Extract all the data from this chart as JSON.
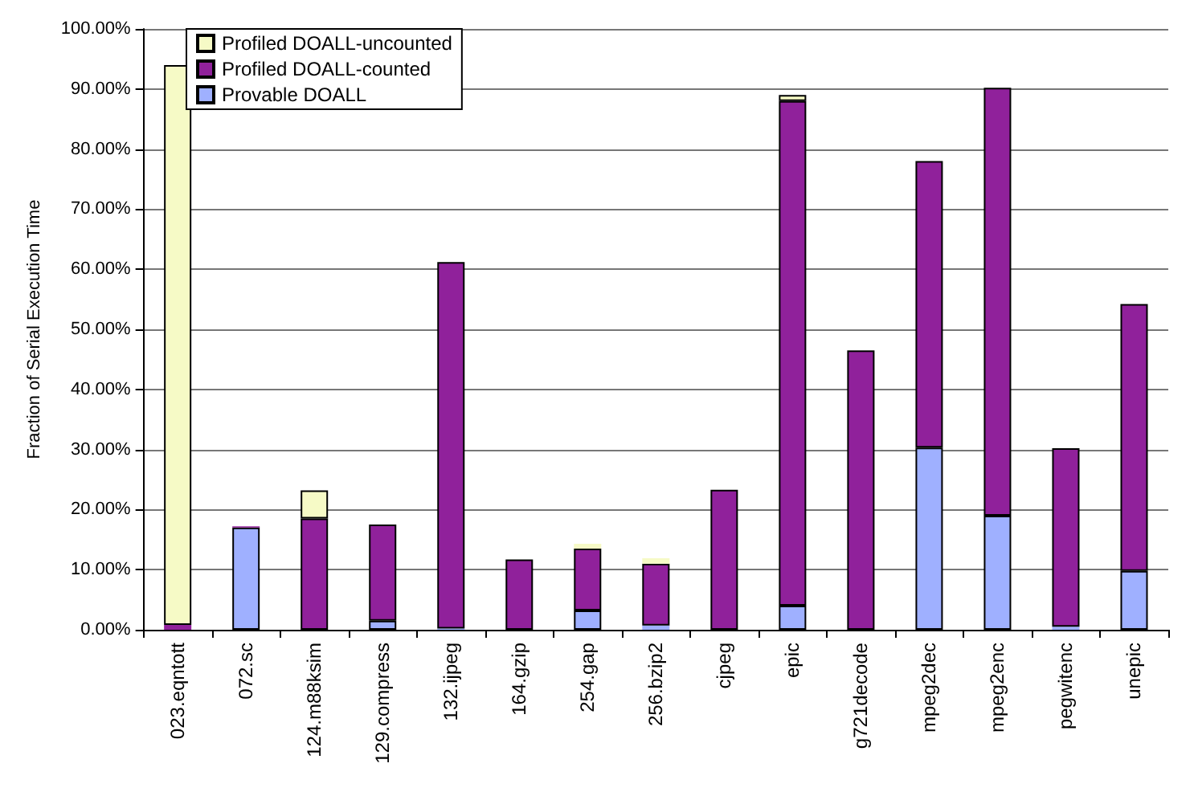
{
  "chart_data": {
    "type": "bar",
    "stacked": true,
    "ylabel": "Fraction of Serial Execution Time",
    "categories": [
      "023.eqntott",
      "072.sc",
      "124.m88ksim",
      "129.compress",
      "132.ijpeg",
      "164.gzip",
      "254.gap",
      "256.bzip2",
      "cjpeg",
      "epic",
      "g721decode",
      "mpeg2dec",
      "mpeg2enc",
      "pegwitenc",
      "unepic"
    ],
    "series": [
      {
        "name": "Provable DOALL",
        "color": "#9fb0ff",
        "values": [
          0,
          17,
          0,
          1.5,
          0.2,
          0,
          3.2,
          0.7,
          0,
          4,
          0,
          30.3,
          19,
          0.5,
          9.8
        ]
      },
      {
        "name": "Profiled DOALL-counted",
        "color": "#90219b",
        "values": [
          0.8,
          0.2,
          18.5,
          16,
          61,
          11.7,
          10.3,
          10.3,
          23.3,
          84,
          46.5,
          47.7,
          71.2,
          29.7,
          44.4
        ]
      },
      {
        "name": "Profiled DOALL-uncounted",
        "color": "#f6fac6",
        "values": [
          93.2,
          0,
          4.7,
          0,
          0,
          0,
          0.8,
          0.9,
          0,
          1,
          0,
          0,
          0,
          0,
          0
        ]
      }
    ],
    "ylim": [
      0,
      100
    ],
    "yticks": [
      {
        "value": 0,
        "label": "0.00%"
      },
      {
        "value": 10,
        "label": "10.00%"
      },
      {
        "value": 20,
        "label": "20.00%"
      },
      {
        "value": 30,
        "label": "30.00%"
      },
      {
        "value": 40,
        "label": "40.00%"
      },
      {
        "value": 50,
        "label": "50.00%"
      },
      {
        "value": 60,
        "label": "60.00%"
      },
      {
        "value": 70,
        "label": "70.00%"
      },
      {
        "value": 80,
        "label": "80.00%"
      },
      {
        "value": 90,
        "label": "90.00%"
      },
      {
        "value": 100,
        "label": "100.00%"
      }
    ],
    "grid": "y",
    "legend": "top left"
  }
}
